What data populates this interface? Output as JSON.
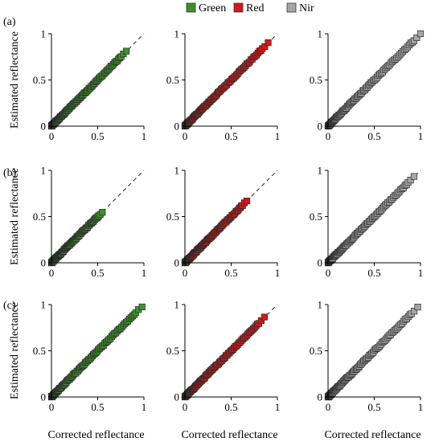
{
  "legend": [
    {
      "label": "Green",
      "color": "#3f8f2e"
    },
    {
      "label": "Red",
      "color": "#d11a1a"
    },
    {
      "label": "Nir",
      "color": "#a6a6a6"
    }
  ],
  "row_labels": [
    "(a)",
    "(b)",
    "(c)"
  ],
  "ylabel": "Estimated reflectance",
  "xlabel": "Corrected reflectance",
  "chart_data": [
    {
      "type": "scatter",
      "row": "(a)",
      "series": "Green",
      "color": "#3f8f2e",
      "x_max": 0.81,
      "xlim": [
        0,
        1
      ],
      "ylim": [
        0,
        1
      ],
      "xticks": [
        "0",
        "0.5",
        "1"
      ],
      "yticks": [
        "0",
        "0.5",
        "1"
      ],
      "reference_line": "y = x (dashed)"
    },
    {
      "type": "scatter",
      "row": "(a)",
      "series": "Red",
      "color": "#d11a1a",
      "x_max": 0.9,
      "xlim": [
        0,
        1
      ],
      "ylim": [
        0,
        1
      ],
      "xticks": [
        "0",
        "0.5",
        "1"
      ],
      "yticks": [
        "0",
        "0.5",
        "1"
      ],
      "reference_line": "y = x (dashed)"
    },
    {
      "type": "scatter",
      "row": "(a)",
      "series": "Nir",
      "color": "#a6a6a6",
      "x_max": 1.0,
      "xlim": [
        0,
        1
      ],
      "ylim": [
        0,
        1
      ],
      "xticks": [
        "0",
        "0.5",
        "1"
      ],
      "yticks": [
        "0",
        "0.5",
        "1"
      ],
      "reference_line": "y = x (dashed)"
    },
    {
      "type": "scatter",
      "row": "(b)",
      "series": "Green",
      "color": "#3f8f2e",
      "x_max": 0.55,
      "xlim": [
        0,
        1
      ],
      "ylim": [
        0,
        1
      ],
      "xticks": [
        "0",
        "0.5",
        "1"
      ],
      "yticks": [
        "0",
        "0.5",
        "1"
      ],
      "reference_line": "y = x (dashed)"
    },
    {
      "type": "scatter",
      "row": "(b)",
      "series": "Red",
      "color": "#d11a1a",
      "x_max": 0.67,
      "xlim": [
        0,
        1
      ],
      "ylim": [
        0,
        1
      ],
      "xticks": [
        "0",
        "0.5",
        "1"
      ],
      "yticks": [
        "0",
        "0.5",
        "1"
      ],
      "reference_line": "y = x (dashed)"
    },
    {
      "type": "scatter",
      "row": "(b)",
      "series": "Nir",
      "color": "#a6a6a6",
      "x_max": 0.93,
      "xlim": [
        0,
        1
      ],
      "ylim": [
        0,
        1
      ],
      "xticks": [
        "0",
        "0.5",
        "1"
      ],
      "yticks": [
        "0",
        "0.5",
        "1"
      ],
      "reference_line": "y = x (dashed)"
    },
    {
      "type": "scatter",
      "row": "(c)",
      "series": "Green",
      "color": "#3f8f2e",
      "x_max": 0.98,
      "xlim": [
        0,
        1
      ],
      "ylim": [
        0,
        1
      ],
      "xticks": [
        "0",
        "0.5",
        "1"
      ],
      "yticks": [
        "0",
        "0.5",
        "1"
      ],
      "reference_line": "y = x (dashed)"
    },
    {
      "type": "scatter",
      "row": "(c)",
      "series": "Red",
      "color": "#d11a1a",
      "x_max": 0.86,
      "xlim": [
        0,
        1
      ],
      "ylim": [
        0,
        1
      ],
      "xticks": [
        "0",
        "0.5",
        "1"
      ],
      "yticks": [
        "0",
        "0.5",
        "1"
      ],
      "reference_line": "y = x (dashed)"
    },
    {
      "type": "scatter",
      "row": "(c)",
      "series": "Nir",
      "color": "#a6a6a6",
      "x_max": 0.97,
      "xlim": [
        0,
        1
      ],
      "ylim": [
        0,
        1
      ],
      "xticks": [
        "0",
        "0.5",
        "1"
      ],
      "yticks": [
        "0",
        "0.5",
        "1"
      ],
      "reference_line": "y = x (dashed)"
    }
  ]
}
